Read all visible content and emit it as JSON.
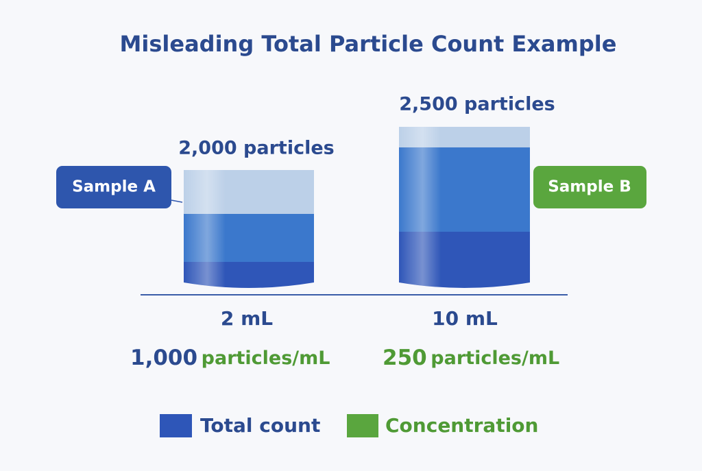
{
  "title": "Misleading Total Particle Count Example",
  "samples": [
    {
      "label": "Sample A",
      "count": "2,000 particles",
      "volume": "2 mL",
      "concentration": {
        "value": "1,000",
        "unit": "particles/mL"
      }
    },
    {
      "label": "Sample B",
      "count": "2,500 particles",
      "volume": "10 mL",
      "concentration": {
        "value": "250",
        "unit": "particles/mL"
      }
    }
  ],
  "legend": [
    "Total count",
    "Concentration"
  ]
}
